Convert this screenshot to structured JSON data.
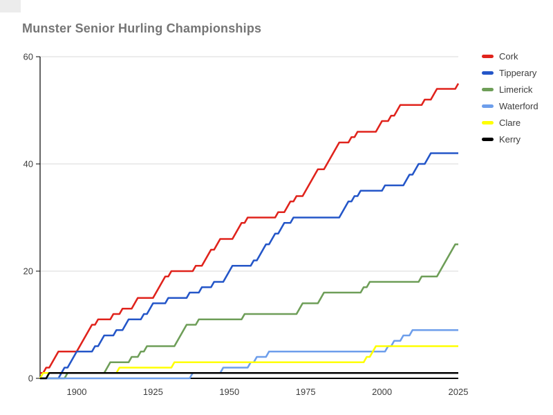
{
  "title": "Munster Senior Hurling Championships",
  "chart_data": {
    "type": "line",
    "subtype": "cumulative-step",
    "title": "Munster Senior Hurling Championships",
    "xlabel": "",
    "ylabel": "",
    "x_range": [
      1888,
      2025
    ],
    "ylim": [
      0,
      60
    ],
    "yticks": [
      0,
      20,
      40,
      60
    ],
    "xticks": [
      1900,
      1925,
      1950,
      1975,
      2000,
      2025
    ],
    "grid": true,
    "legend_position": "right",
    "axis_colors": {
      "grid": "#d9d9d9",
      "baseline": "#000000",
      "axis_line": "#000000",
      "tick_label": "#3c3c3c",
      "title": "#757575"
    },
    "series": [
      {
        "name": "Cork",
        "color": "#e0231c",
        "final_total": 55,
        "win_years": [
          1888,
          1890,
          1892,
          1893,
          1894,
          1901,
          1902,
          1903,
          1904,
          1905,
          1907,
          1912,
          1915,
          1919,
          1920,
          1926,
          1927,
          1928,
          1929,
          1931,
          1939,
          1942,
          1943,
          1944,
          1946,
          1947,
          1952,
          1953,
          1954,
          1956,
          1966,
          1969,
          1970,
          1972,
          1975,
          1976,
          1977,
          1978,
          1979,
          1982,
          1983,
          1984,
          1985,
          1986,
          1990,
          1992,
          1999,
          2000,
          2003,
          2005,
          2006,
          2014,
          2017,
          2018,
          2025
        ]
      },
      {
        "name": "Tipperary",
        "color": "#2456c8",
        "final_total": 42,
        "win_years": [
          1895,
          1896,
          1898,
          1899,
          1900,
          1906,
          1908,
          1909,
          1913,
          1916,
          1917,
          1922,
          1924,
          1925,
          1930,
          1937,
          1941,
          1945,
          1949,
          1950,
          1951,
          1958,
          1960,
          1961,
          1962,
          1964,
          1965,
          1967,
          1968,
          1971,
          1987,
          1988,
          1989,
          1991,
          1993,
          2001,
          2008,
          2009,
          2011,
          2012,
          2015,
          2016
        ]
      },
      {
        "name": "Limerick",
        "color": "#6e9e58",
        "final_total": 25,
        "win_years": [
          1897,
          1910,
          1911,
          1918,
          1921,
          1923,
          1933,
          1934,
          1935,
          1936,
          1940,
          1955,
          1973,
          1974,
          1980,
          1981,
          1994,
          1996,
          2013,
          2019,
          2020,
          2021,
          2022,
          2023,
          2024
        ]
      },
      {
        "name": "Waterford",
        "color": "#6d9eeb",
        "final_total": 9,
        "win_years": [
          1938,
          1948,
          1957,
          1959,
          1963,
          2002,
          2004,
          2007,
          2010
        ]
      },
      {
        "name": "Clare",
        "color": "#ffff00",
        "final_total": 6,
        "win_years": [
          1889,
          1914,
          1932,
          1995,
          1997,
          1998
        ]
      },
      {
        "name": "Kerry",
        "color": "#000000",
        "final_total": 1,
        "win_years": [
          1891
        ]
      }
    ]
  }
}
